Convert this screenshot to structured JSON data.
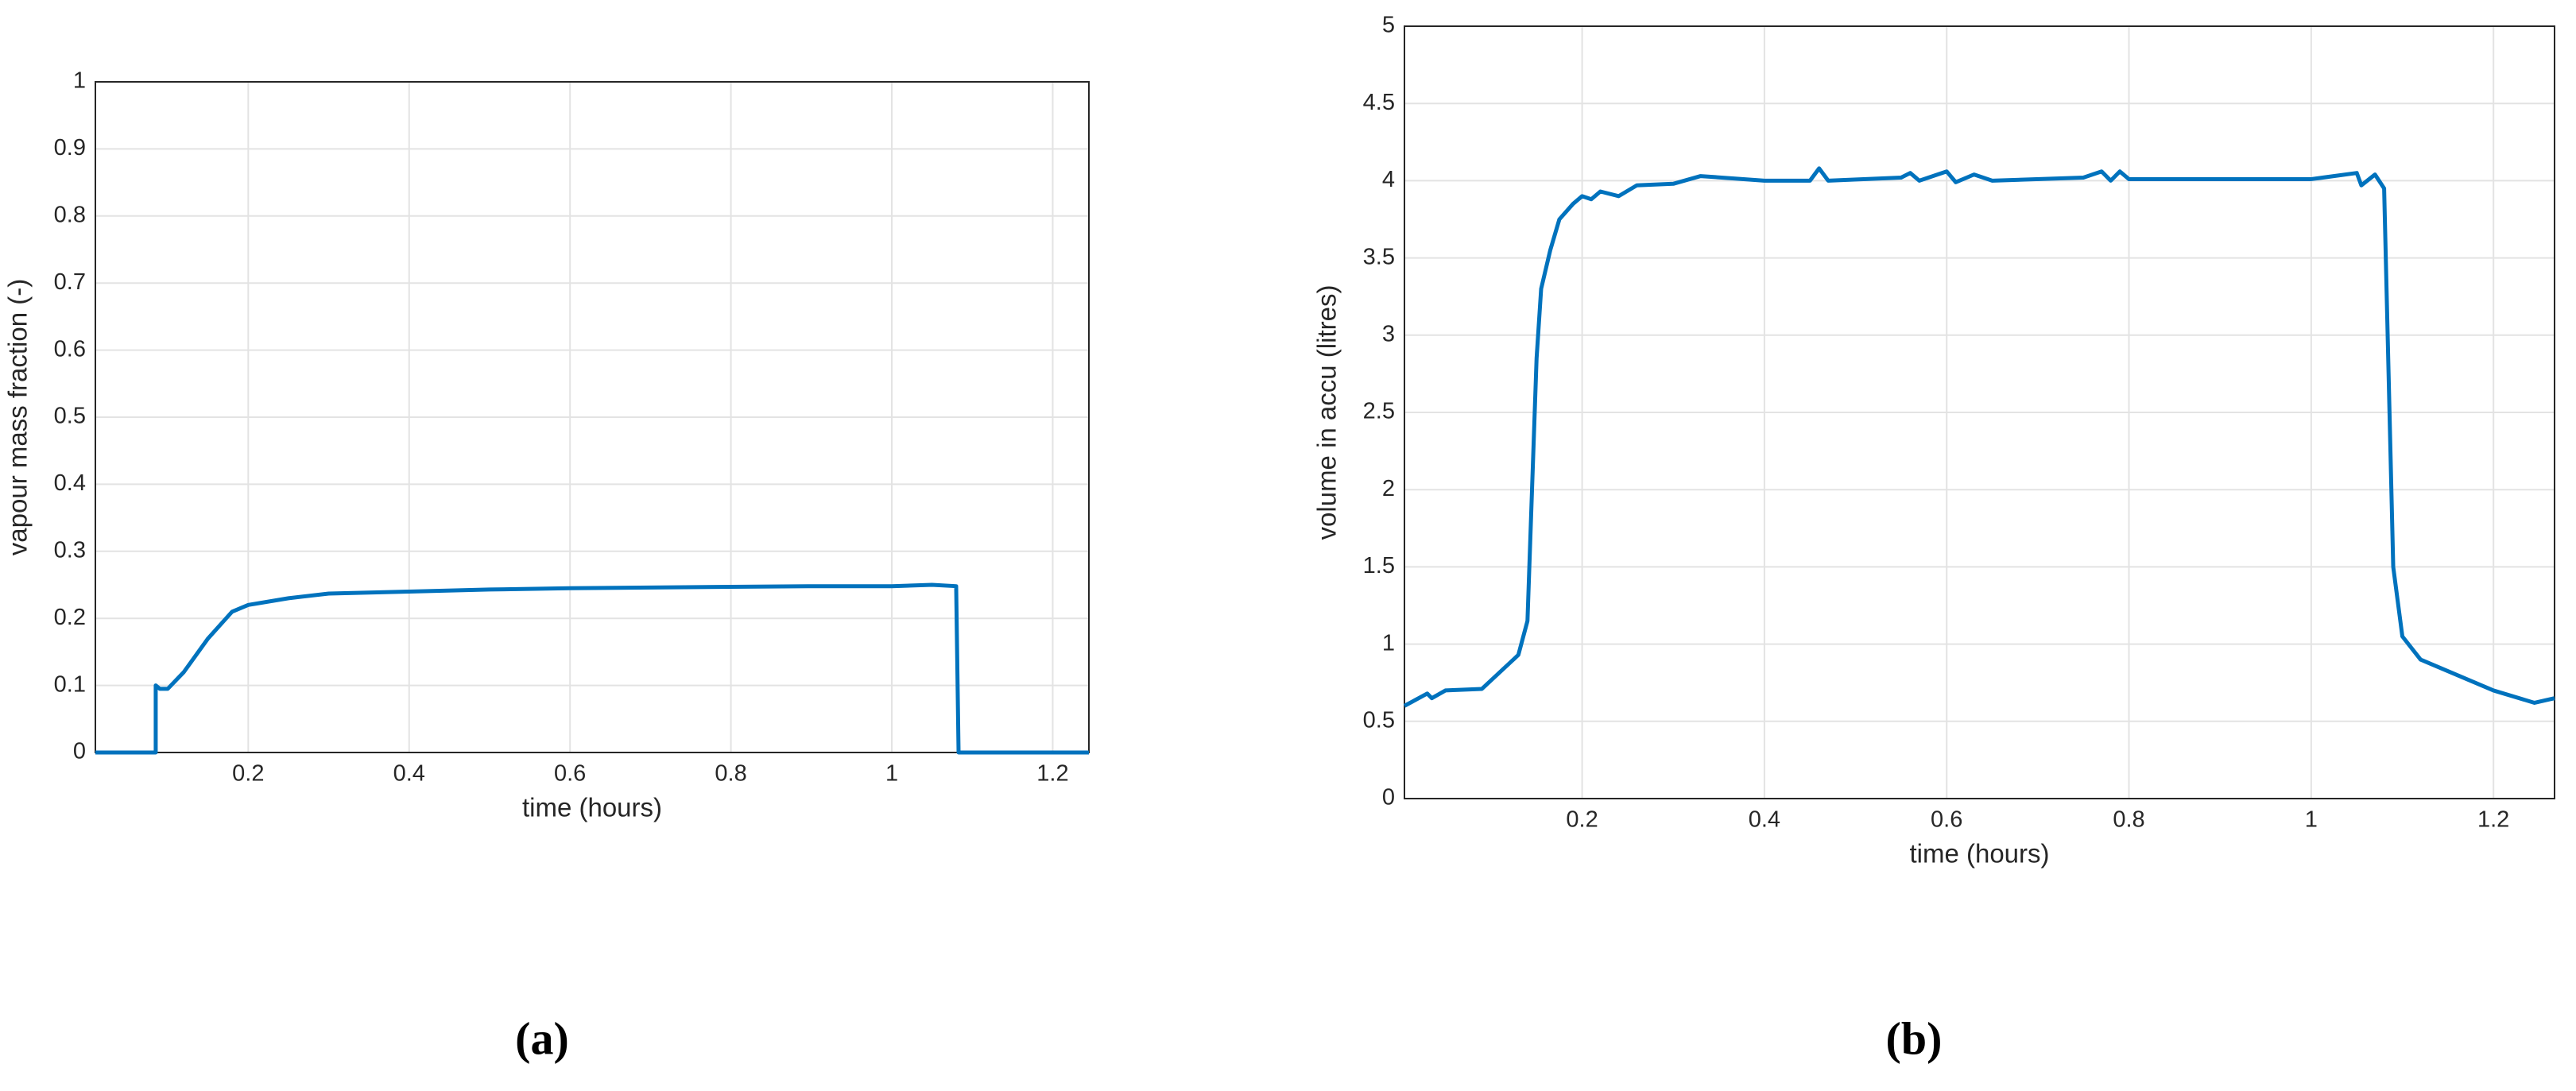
{
  "chart_data": [
    {
      "type": "line",
      "caption": "(a)",
      "x_label": "time (hours)",
      "y_label": "vapour mass fraction (-)",
      "xlim": [
        0.01,
        1.245
      ],
      "ylim": [
        0,
        1
      ],
      "xticks": [
        0.2,
        0.4,
        0.6,
        0.8,
        1,
        1.2
      ],
      "yticks": [
        0,
        0.1,
        0.2,
        0.3,
        0.4,
        0.5,
        0.6,
        0.7,
        0.8,
        0.9,
        1
      ],
      "grid": true,
      "series": [
        {
          "color": "#0072bd",
          "x": [
            0.01,
            0.085,
            0.085,
            0.09,
            0.1,
            0.12,
            0.15,
            0.18,
            0.2,
            0.25,
            0.3,
            0.4,
            0.5,
            0.6,
            0.7,
            0.8,
            0.9,
            1.0,
            1.05,
            1.08,
            1.083,
            1.245
          ],
          "values": [
            0,
            0,
            0.1,
            0.095,
            0.095,
            0.12,
            0.17,
            0.21,
            0.22,
            0.23,
            0.237,
            0.24,
            0.243,
            0.245,
            0.246,
            0.247,
            0.248,
            0.248,
            0.25,
            0.248,
            0,
            0
          ]
        }
      ]
    },
    {
      "type": "line",
      "caption": "(b)",
      "x_label": "time (hours)",
      "y_label": "volume in accu (litres)",
      "xlim": [
        0.005,
        1.267
      ],
      "ylim": [
        0,
        5
      ],
      "xticks": [
        0.2,
        0.4,
        0.6,
        0.8,
        1,
        1.2
      ],
      "yticks": [
        0,
        0.5,
        1,
        1.5,
        2,
        2.5,
        3,
        3.5,
        4,
        4.5,
        5
      ],
      "grid": true,
      "series": [
        {
          "color": "#0072bd",
          "x": [
            0.005,
            0.03,
            0.035,
            0.05,
            0.09,
            0.13,
            0.14,
            0.145,
            0.15,
            0.155,
            0.165,
            0.175,
            0.19,
            0.2,
            0.21,
            0.22,
            0.24,
            0.26,
            0.3,
            0.33,
            0.4,
            0.45,
            0.46,
            0.47,
            0.55,
            0.56,
            0.57,
            0.6,
            0.61,
            0.63,
            0.65,
            0.75,
            0.77,
            0.78,
            0.79,
            0.8,
            0.9,
            1.0,
            1.05,
            1.055,
            1.07,
            1.08,
            1.09,
            1.1,
            1.12,
            1.2,
            1.245,
            1.267
          ],
          "values": [
            0.6,
            0.68,
            0.65,
            0.7,
            0.71,
            0.93,
            1.15,
            2.0,
            2.85,
            3.3,
            3.55,
            3.75,
            3.85,
            3.9,
            3.88,
            3.93,
            3.9,
            3.97,
            3.98,
            4.03,
            4.0,
            4.0,
            4.08,
            4.0,
            4.02,
            4.05,
            4.0,
            4.06,
            3.99,
            4.04,
            4.0,
            4.02,
            4.06,
            4.0,
            4.06,
            4.01,
            4.01,
            4.01,
            4.05,
            3.97,
            4.04,
            3.95,
            1.5,
            1.05,
            0.9,
            0.7,
            0.62,
            0.65
          ]
        }
      ]
    }
  ]
}
